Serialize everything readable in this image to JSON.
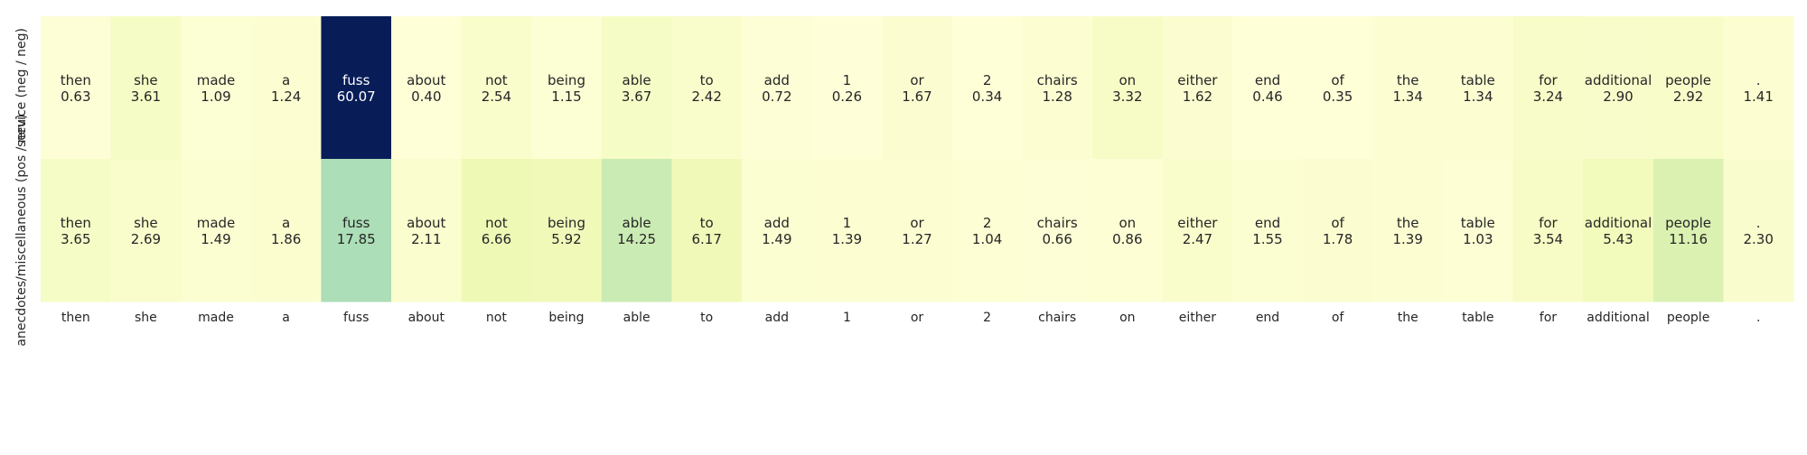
{
  "chart_data": {
    "type": "heatmap",
    "title": "",
    "xlabel": "",
    "ylabel": "",
    "colormap": "YlGnBu",
    "color_range": [
      0,
      60.07
    ],
    "grid": false,
    "legend": "none",
    "tokens": [
      "then",
      "she",
      "made",
      "a",
      "fuss",
      "about",
      "not",
      "being",
      "able",
      "to",
      "add",
      "1",
      "or",
      "2",
      "chairs",
      "on",
      "either",
      "end",
      "of",
      "the",
      "table",
      "for",
      "additional",
      "people",
      "."
    ],
    "rows": [
      {
        "label": "service (neg / neg)",
        "values": [
          0.63,
          3.61,
          1.09,
          1.24,
          60.07,
          0.4,
          2.54,
          1.15,
          3.67,
          2.42,
          0.72,
          0.26,
          1.67,
          0.34,
          1.28,
          3.32,
          1.62,
          0.46,
          0.35,
          1.34,
          1.34,
          3.24,
          2.9,
          2.92,
          1.41
        ],
        "value_labels": [
          "0.63",
          "3.61",
          "1.09",
          "1.24",
          "60.07",
          "0.40",
          "2.54",
          "1.15",
          "3.67",
          "2.42",
          "0.72",
          "0.26",
          "1.67",
          "0.34",
          "1.28",
          "3.32",
          "1.62",
          "0.46",
          "0.35",
          "1.34",
          "1.34",
          "3.24",
          "2.90",
          "2.92",
          "1.41"
        ]
      },
      {
        "label": "anecdotes/miscellaneous (pos / neu)",
        "values": [
          3.65,
          2.69,
          1.49,
          1.86,
          17.85,
          2.11,
          6.66,
          5.92,
          14.25,
          6.17,
          1.49,
          1.39,
          1.27,
          1.04,
          0.66,
          0.86,
          2.47,
          1.55,
          1.78,
          1.39,
          1.03,
          3.54,
          5.43,
          11.16,
          2.3
        ],
        "value_labels": [
          "3.65",
          "2.69",
          "1.49",
          "1.86",
          "17.85",
          "2.11",
          "6.66",
          "5.92",
          "14.25",
          "6.17",
          "1.49",
          "1.39",
          "1.27",
          "1.04",
          "0.66",
          "0.86",
          "2.47",
          "1.55",
          "1.78",
          "1.39",
          "1.03",
          "3.54",
          "5.43",
          "11.16",
          "2.30"
        ]
      }
    ]
  }
}
